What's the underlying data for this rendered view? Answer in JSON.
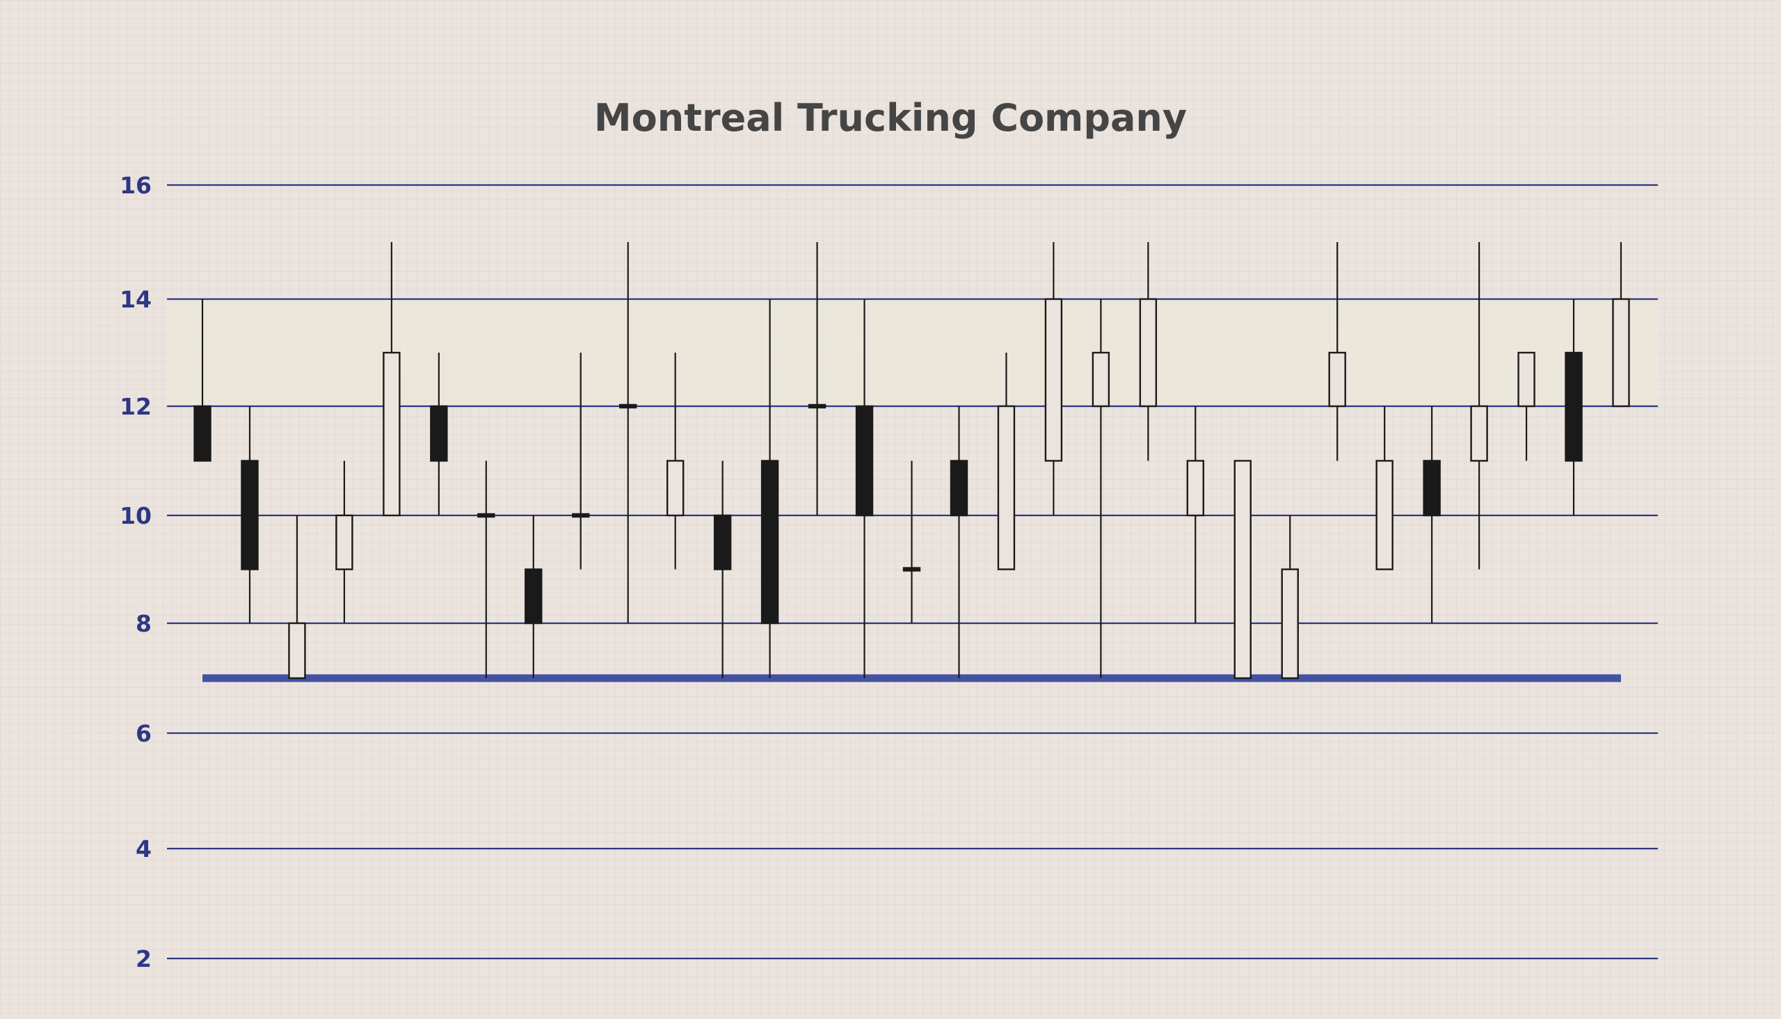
{
  "chart_data": {
    "type": "candlestick",
    "title": "Montreal Trucking Company",
    "xlabel": "",
    "ylabel": "",
    "ylim": [
      1.5,
      16
    ],
    "yticks": [
      2,
      4,
      6,
      8,
      10,
      12,
      14,
      16
    ],
    "grid": "horizontal",
    "colors": {
      "gridline": "#2d3785",
      "ticklabel": "#2d3785",
      "title": "#454545",
      "bullish_fill": "none",
      "bearish_fill": "#1a1a1a",
      "candle_stroke": "#1a1a1a",
      "reference_line": "#4352a1",
      "band_fill": "#ede9d8"
    },
    "reference_line": {
      "value": 7
    },
    "candles": [
      {
        "open": 12,
        "close": 11,
        "high": 14,
        "low": 11
      },
      {
        "open": 11,
        "close": 9,
        "high": 12,
        "low": 8
      },
      {
        "open": 7,
        "close": 8,
        "high": 10,
        "low": 7
      },
      {
        "open": 9,
        "close": 10,
        "high": 11,
        "low": 8
      },
      {
        "open": 10,
        "close": 13,
        "high": 15,
        "low": 10
      },
      {
        "open": 12,
        "close": 11,
        "high": 13,
        "low": 10
      },
      {
        "open": 10,
        "close": 10,
        "high": 11,
        "low": 7
      },
      {
        "open": 9,
        "close": 8,
        "high": 10,
        "low": 7
      },
      {
        "open": 10,
        "close": 10,
        "high": 13,
        "low": 9
      },
      {
        "open": 12,
        "close": 12,
        "high": 15,
        "low": 8
      },
      {
        "open": 10,
        "close": 11,
        "high": 13,
        "low": 9
      },
      {
        "open": 10,
        "close": 9,
        "high": 11,
        "low": 7
      },
      {
        "open": 11,
        "close": 8,
        "high": 14,
        "low": 7
      },
      {
        "open": 12,
        "close": 12,
        "high": 15,
        "low": 10
      },
      {
        "open": 12,
        "close": 10,
        "high": 14,
        "low": 7
      },
      {
        "open": 9,
        "close": 9,
        "high": 11,
        "low": 8
      },
      {
        "open": 11,
        "close": 10,
        "high": 12,
        "low": 7
      },
      {
        "open": 9,
        "close": 12,
        "high": 13,
        "low": 9
      },
      {
        "open": 11,
        "close": 14,
        "high": 15,
        "low": 10
      },
      {
        "open": 12,
        "close": 13,
        "high": 14,
        "low": 7
      },
      {
        "open": 12,
        "close": 14,
        "high": 15,
        "low": 11
      },
      {
        "open": 10,
        "close": 11,
        "high": 12,
        "low": 8
      },
      {
        "open": 7,
        "close": 11,
        "high": 11,
        "low": 7
      },
      {
        "open": 7,
        "close": 9,
        "high": 10,
        "low": 7
      },
      {
        "open": 12,
        "close": 13,
        "high": 15,
        "low": 11
      },
      {
        "open": 9,
        "close": 11,
        "high": 12,
        "low": 9
      },
      {
        "open": 11,
        "close": 10,
        "high": 12,
        "low": 8
      },
      {
        "open": 11,
        "close": 12,
        "high": 15,
        "low": 9
      },
      {
        "open": 12,
        "close": 13,
        "high": 13,
        "low": 11
      },
      {
        "open": 13,
        "close": 11,
        "high": 14,
        "low": 10
      },
      {
        "open": 12,
        "close": 14,
        "high": 15,
        "low": 12
      }
    ]
  }
}
